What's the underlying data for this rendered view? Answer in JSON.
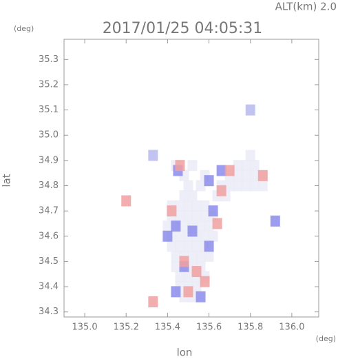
{
  "chart_data": {
    "type": "scatter",
    "title": "2017/01/25 04:05:31",
    "annotation": "ALT(km) 2.0",
    "xlabel": "lon",
    "ylabel": "lat",
    "x_unit": "(deg)",
    "y_unit": "(deg)",
    "xlim": [
      134.9,
      136.13
    ],
    "ylim": [
      34.28,
      35.38
    ],
    "xticks": [
      {
        "value": 135,
        "label": "135.0"
      },
      135.2,
      135.4,
      135.6,
      135.8,
      {
        "value": 136,
        "label": "136.0"
      }
    ],
    "yticks": [
      34.3,
      34.4,
      34.5,
      34.6,
      34.7,
      34.8,
      34.9,
      {
        "value": 35,
        "label": "35.0"
      },
      35.1,
      35.2,
      35.3
    ],
    "series": [
      {
        "color": "#ebebf7",
        "x": [
          135.42,
          135.46,
          135.5,
          135.54,
          135.58,
          135.42,
          135.46,
          135.5,
          135.54,
          135.58,
          135.62,
          135.4,
          135.44,
          135.48,
          135.52,
          135.56,
          135.6,
          135.42,
          135.46,
          135.5,
          135.54,
          135.58,
          135.62,
          135.42,
          135.46,
          135.5,
          135.54,
          135.58,
          135.44,
          135.48,
          135.52,
          135.56,
          135.6,
          135.44,
          135.48,
          135.52,
          135.56,
          135.46,
          135.5,
          135.54,
          135.58,
          135.46,
          135.5,
          135.54,
          135.48,
          135.52,
          135.48,
          135.52,
          135.64,
          135.68,
          135.5,
          135.56,
          135.66,
          135.7,
          135.74,
          135.78,
          135.82,
          135.86,
          135.48,
          135.58,
          135.7,
          135.74,
          135.78,
          135.82,
          135.86,
          135.44,
          135.52,
          135.74,
          135.78,
          135.82,
          135.8
        ],
        "y": [
          34.72,
          34.72,
          34.72,
          34.72,
          34.72,
          34.68,
          34.68,
          34.68,
          34.68,
          34.68,
          34.68,
          34.64,
          34.64,
          34.64,
          34.64,
          34.64,
          34.64,
          34.6,
          34.6,
          34.6,
          34.6,
          34.6,
          34.6,
          34.56,
          34.56,
          34.56,
          34.56,
          34.56,
          34.52,
          34.52,
          34.52,
          34.52,
          34.52,
          34.48,
          34.48,
          34.48,
          34.48,
          34.44,
          34.44,
          34.44,
          34.44,
          34.4,
          34.4,
          34.4,
          34.36,
          34.36,
          34.76,
          34.76,
          34.76,
          34.76,
          34.8,
          34.8,
          34.8,
          34.8,
          34.8,
          34.8,
          34.8,
          34.8,
          34.84,
          34.84,
          34.84,
          34.84,
          34.84,
          34.84,
          34.84,
          34.88,
          34.88,
          34.88,
          34.88,
          34.88,
          34.92
        ]
      },
      {
        "color": "#b8b8ee",
        "x": [
          135.33,
          135.8
        ],
        "y": [
          34.92,
          35.1
        ]
      },
      {
        "color": "#8c8cec",
        "x": [
          135.44,
          135.48,
          135.56,
          135.44,
          135.52,
          135.6,
          135.62,
          135.66,
          135.6,
          135.45,
          135.92,
          135.4
        ],
        "y": [
          34.64,
          34.48,
          34.36,
          34.38,
          34.62,
          34.56,
          34.7,
          34.86,
          34.82,
          34.86,
          34.66,
          34.6
        ]
      },
      {
        "color": "#f0a0a0",
        "x": [
          135.48,
          135.58,
          135.5,
          135.66,
          135.7,
          135.86,
          135.42,
          135.54,
          135.46,
          135.2,
          135.33,
          135.64
        ],
        "y": [
          34.5,
          34.42,
          34.38,
          34.78,
          34.86,
          34.84,
          34.7,
          34.46,
          34.88,
          34.74,
          34.34,
          34.65
        ]
      }
    ]
  }
}
